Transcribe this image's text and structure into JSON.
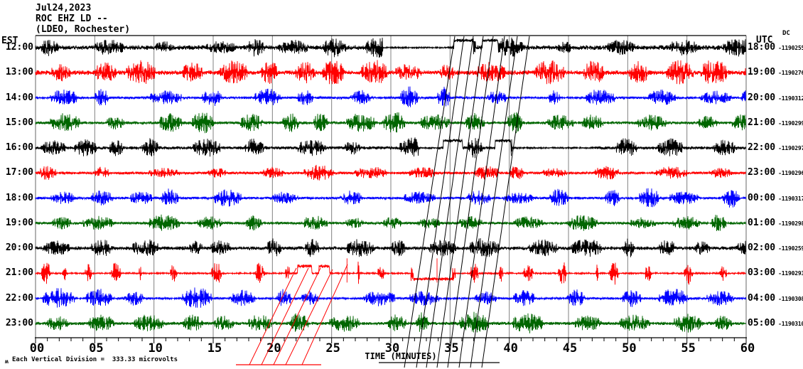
{
  "header": {
    "date": "Jul24,2023",
    "station": "ROC EHZ LD --",
    "location": "(LDEO, Rochester)"
  },
  "axes": {
    "left_timezone": "EST",
    "right_timezone": "UTC",
    "dc_header": "DC",
    "x_axis_label": "TIME (MINUTES)",
    "x_ticks": [
      "00",
      "05",
      "10",
      "15",
      "20",
      "25",
      "30",
      "35",
      "40",
      "45",
      "50",
      "55",
      "60"
    ],
    "footnote": "Each Vertical Division =  333.33 microvolts",
    "footnote_glyph": "ʍ"
  },
  "chart_data": {
    "type": "line",
    "subtype": "helicorder-seismogram",
    "title": "ROC EHZ LD -- (LDEO, Rochester) Jul24,2023",
    "xlabel": "TIME (MINUTES)",
    "x_range_minutes": [
      0,
      60
    ],
    "x_tick_step_major": 5,
    "x_tick_step_minor": 1,
    "grid": "vertical gray lines every 5 minutes",
    "legend_position": "none",
    "vertical_division_microvolts": 333.33,
    "timezones": {
      "left": "EST",
      "right": "UTC"
    },
    "colors": {
      "trace_cycle": [
        "#000000",
        "#ff0000",
        "#0000ff",
        "#006600"
      ],
      "grid": "#808080",
      "axis": "#000000"
    },
    "rows": [
      {
        "est": "12:00",
        "utc": "18:00",
        "dc": "-1190255",
        "color": "#000000",
        "synth": {
          "seed": 11,
          "base": 3.4,
          "bmin": 6,
          "bvar": 7,
          "gap": 0.9,
          "quiet": [
            [
              29.3,
              35.2
            ]
          ],
          "pulses": [
            [
              35.3,
              36.9,
              10
            ],
            [
              37.7,
              39.0,
              10
            ]
          ],
          "spikes": []
        }
      },
      {
        "est": "13:00",
        "utc": "19:00",
        "dc": "-1190276",
        "color": "#ff0000",
        "synth": {
          "seed": 22,
          "base": 3.4,
          "bmin": 9,
          "bvar": 9,
          "gap": 0.7,
          "quiet": [],
          "pulses": [],
          "spikes": []
        }
      },
      {
        "est": "14:00",
        "utc": "20:00",
        "dc": "-1190312",
        "color": "#0000ff",
        "synth": {
          "seed": 33,
          "base": 1.8,
          "bmin": 8,
          "bvar": 8,
          "gap": 1.0,
          "quiet": [],
          "pulses": [],
          "spikes": []
        }
      },
      {
        "est": "15:00",
        "utc": "21:00",
        "dc": "-1190299",
        "color": "#006600",
        "synth": {
          "seed": 44,
          "base": 2.2,
          "bmin": 8,
          "bvar": 7,
          "gap": 0.9,
          "quiet": [],
          "pulses": [],
          "spikes": []
        }
      },
      {
        "est": "16:00",
        "utc": "22:00",
        "dc": "-1190297",
        "color": "#000000",
        "synth": {
          "seed": 55,
          "base": 2.4,
          "bmin": 7,
          "bvar": 7,
          "gap": 1.0,
          "quiet": [
            [
              32.3,
              33.9
            ],
            [
              40.2,
              47.2
            ]
          ],
          "pulses": [
            [
              34.4,
              36.0,
              10
            ],
            [
              38.8,
              40.1,
              10
            ]
          ],
          "spikes": []
        }
      },
      {
        "est": "17:00",
        "utc": "23:00",
        "dc": "-1190296",
        "color": "#ff0000",
        "synth": {
          "seed": 66,
          "base": 2.0,
          "bmin": 5,
          "bvar": 5,
          "gap": 1.0,
          "quiet": [],
          "pulses": [],
          "spikes": []
        }
      },
      {
        "est": "18:00",
        "utc": "00:00",
        "dc": "-1190317",
        "color": "#0000ff",
        "synth": {
          "seed": 77,
          "base": 1.9,
          "bmin": 7,
          "bvar": 7,
          "gap": 1.1,
          "quiet": [],
          "pulses": [],
          "spikes": []
        }
      },
      {
        "est": "19:00",
        "utc": "01:00",
        "dc": "-1190298",
        "color": "#006600",
        "synth": {
          "seed": 88,
          "base": 1.9,
          "bmin": 6,
          "bvar": 6,
          "gap": 1.0,
          "quiet": [],
          "pulses": [],
          "spikes": []
        }
      },
      {
        "est": "20:00",
        "utc": "02:00",
        "dc": "-1190259",
        "color": "#000000",
        "synth": {
          "seed": 99,
          "base": 2.7,
          "bmin": 7,
          "bvar": 7,
          "gap": 0.9,
          "quiet": [],
          "pulses": [],
          "spikes": []
        }
      },
      {
        "est": "21:00",
        "utc": "03:00",
        "dc": "-1190293",
        "color": "#ff0000",
        "synth": {
          "seed": 101,
          "style": "spiky",
          "base": 1.2,
          "bmin": 10,
          "bvar": 9,
          "gap": 1.2,
          "quiet": [],
          "pulses": [
            [
              22.1,
              23.3,
              10
            ],
            [
              23.9,
              24.8,
              10
            ],
            [
              31.9,
              35.2,
              -8
            ]
          ],
          "spikes": [
            26.3,
            33.9
          ]
        }
      },
      {
        "est": "22:00",
        "utc": "04:00",
        "dc": "-1190308",
        "color": "#0000ff",
        "synth": {
          "seed": 111,
          "base": 1.6,
          "bmin": 8,
          "bvar": 7,
          "gap": 1.1,
          "quiet": [],
          "pulses": [],
          "spikes": []
        }
      },
      {
        "est": "23:00",
        "utc": "05:00",
        "dc": "-1190310",
        "color": "#006600",
        "synth": {
          "seed": 122,
          "base": 2.4,
          "bmin": 8,
          "bvar": 8,
          "gap": 0.8,
          "quiet": [],
          "pulses": [],
          "spikes": []
        }
      }
    ],
    "annotations": {
      "red_event_lines": {
        "color": "#ff0000",
        "baseline": [
          332,
          513,
          452,
          513
        ],
        "diagonals": [
          [
            351,
            513,
            417,
            377
          ],
          [
            368,
            513,
            434,
            377
          ],
          [
            385,
            513,
            451,
            377
          ],
          [
            402,
            513,
            468,
            379
          ],
          [
            425,
            513,
            489,
            372
          ]
        ]
      },
      "black_event_lines": {
        "color": "#000000",
        "baseline": [
          533,
          510,
          703,
          510
        ],
        "diagonals": [
          [
            569,
            517,
            640,
            51
          ],
          [
            586,
            517,
            653,
            51
          ],
          [
            600,
            517,
            666,
            51
          ],
          [
            615,
            517,
            680,
            51
          ],
          [
            630,
            517,
            694,
            51
          ],
          [
            646,
            517,
            710,
            51
          ],
          [
            662,
            517,
            728,
            51
          ],
          [
            678,
            517,
            745,
            51
          ]
        ]
      }
    }
  }
}
